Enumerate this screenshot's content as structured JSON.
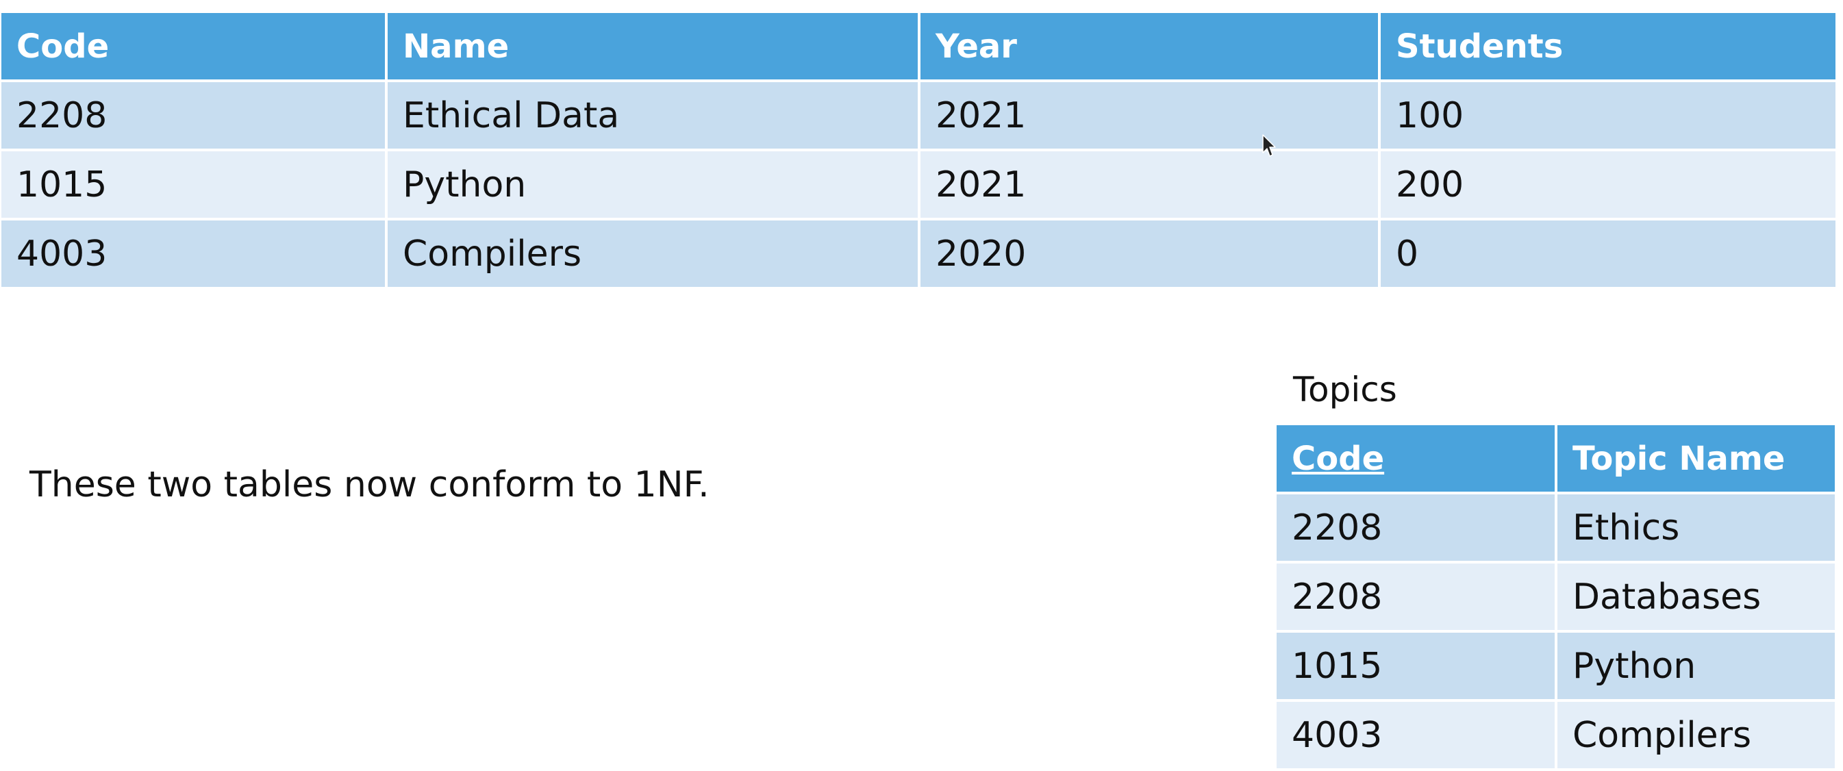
{
  "courses_table": {
    "headers": [
      "Code",
      "Name",
      "Year",
      "Students"
    ],
    "rows": [
      [
        "2208",
        "Ethical Data",
        "2021",
        "100"
      ],
      [
        "1015",
        "Python",
        "2021",
        "200"
      ],
      [
        "4003",
        "Compilers",
        "2020",
        "0"
      ]
    ]
  },
  "note": "These two tables now conform to 1NF.",
  "topics_table": {
    "caption": "Topics",
    "headers": [
      "Code",
      "Topic Name"
    ],
    "rows": [
      [
        "2208",
        "Ethics"
      ],
      [
        "2208",
        "Databases"
      ],
      [
        "1015",
        "Python"
      ],
      [
        "4003",
        "Compilers"
      ]
    ]
  },
  "colors": {
    "header_bg": "#4aa3dc",
    "row_dark": "#c7ddf0",
    "row_light": "#e4eef8"
  },
  "cursor_icon": "mouse-pointer-icon"
}
